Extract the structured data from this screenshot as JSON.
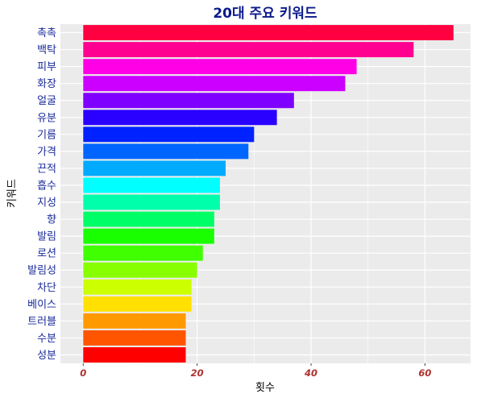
{
  "chart_data": {
    "type": "bar",
    "orientation": "horizontal",
    "title": "20대 주요 키워드",
    "xlabel": "횟수",
    "ylabel": "키워드",
    "xlim": [
      -4,
      68
    ],
    "x_ticks": [
      0,
      20,
      40,
      60
    ],
    "grid": true,
    "legend": "none",
    "categories": [
      "촉촉",
      "백탁",
      "피부",
      "화장",
      "얼굴",
      "유분",
      "기름",
      "가격",
      "끈적",
      "흡수",
      "지성",
      "향",
      "발림",
      "로션",
      "발림성",
      "차단",
      "베이스",
      "트러블",
      "수분",
      "성분"
    ],
    "values": [
      65,
      58,
      48,
      46,
      37,
      34,
      30,
      29,
      25,
      24,
      24,
      23,
      23,
      21,
      20,
      19,
      19,
      18,
      18,
      18
    ],
    "colors": [
      "#ff0040",
      "#ff0090",
      "#ff00e6",
      "#cc00ff",
      "#8000ff",
      "#2a00ff",
      "#0022ff",
      "#0066ff",
      "#00aaff",
      "#00ffff",
      "#00ffaa",
      "#00ff66",
      "#1aff00",
      "#40ff00",
      "#88ff00",
      "#ccff00",
      "#ffe000",
      "#ff9900",
      "#ff5500",
      "#ff0000"
    ],
    "panel_background": "#ebebeb",
    "grid_color": "#ffffff",
    "title_color": "#0a1a8c",
    "tick_color": "#b03030"
  }
}
